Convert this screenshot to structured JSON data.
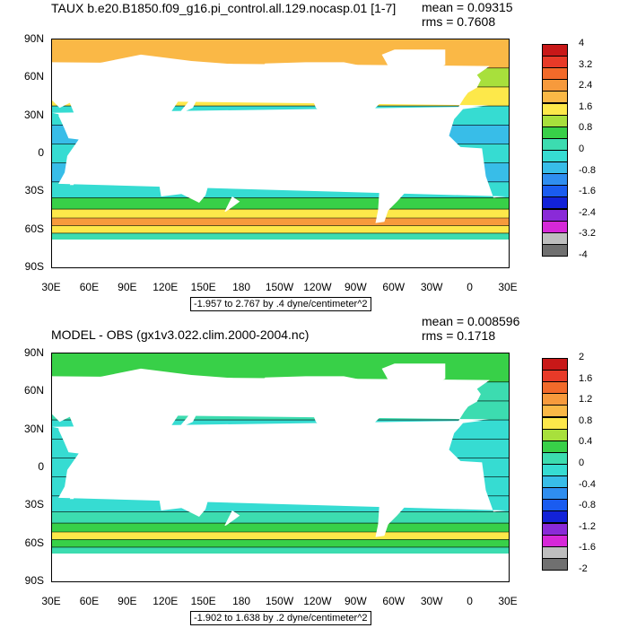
{
  "chart_data": [
    {
      "type": "heatmap",
      "title": "TAUX b.e20.B1850.f09_g16.pi_control.all.129.nocasp.01 [1-7]",
      "stats": {
        "mean": "mean = 0.09315",
        "rms": "rms = 0.7608"
      },
      "range_label": "-1.957 to 2.767 by .4 dyne/centimeter^2",
      "x_ticks": [
        "30E",
        "60E",
        "90E",
        "120E",
        "150E",
        "180",
        "150W",
        "120W",
        "90W",
        "60W",
        "30W",
        "0",
        "30E"
      ],
      "y_ticks": [
        "90N",
        "60N",
        "30N",
        "0",
        "30S",
        "60S",
        "90S"
      ],
      "colorbar_levels": [
        "4",
        "3.2",
        "2.4",
        "1.6",
        "0.8",
        "0",
        "-0.8",
        "-1.6",
        "-2.4",
        "-3.2",
        "-4"
      ],
      "colorbar_colors": [
        "#c81818",
        "#e83a28",
        "#f26a2a",
        "#f79a3c",
        "#fab846",
        "#fde84a",
        "#a8e03c",
        "#38d048",
        "#3cdcb0",
        "#36dcd2",
        "#38bde8",
        "#2f8ef0",
        "#1a5cf0",
        "#1222d8",
        "#8a2ad8",
        "#d628d8",
        "#bebebe",
        "#707070"
      ],
      "zonal_profile": [
        {
          "lat": 75,
          "level": 2
        },
        {
          "lat": 60,
          "level": 1.2
        },
        {
          "lat": 45,
          "level": 1.6
        },
        {
          "lat": 30,
          "level": -0.2
        },
        {
          "lat": 15,
          "level": -0.8
        },
        {
          "lat": 0,
          "level": -0.4
        },
        {
          "lat": -15,
          "level": -0.8
        },
        {
          "lat": -30,
          "level": -0.2
        },
        {
          "lat": -40,
          "level": 0.6
        },
        {
          "lat": -48,
          "level": 1.6
        },
        {
          "lat": -54,
          "level": 2.6
        },
        {
          "lat": -60,
          "level": 1.6
        },
        {
          "lat": -66,
          "level": 0.4
        }
      ]
    },
    {
      "type": "heatmap",
      "title": "MODEL - OBS (gx1v3.022.clim.2000-2004.nc)",
      "stats": {
        "mean": "mean = 0.008596",
        "rms": "rms = 0.1718"
      },
      "range_label": "-1.902 to 1.638 by .2 dyne/centimeter^2",
      "x_ticks": [
        "30E",
        "60E",
        "90E",
        "120E",
        "150E",
        "180",
        "150W",
        "120W",
        "90W",
        "60W",
        "30W",
        "0",
        "30E"
      ],
      "y_ticks": [
        "90N",
        "60N",
        "30N",
        "0",
        "30S",
        "60S",
        "90S"
      ],
      "colorbar_levels": [
        "2",
        "1.6",
        "1.2",
        "0.8",
        "0.4",
        "0",
        "-0.4",
        "-0.8",
        "-1.2",
        "-1.6",
        "-2"
      ],
      "colorbar_colors": [
        "#c81818",
        "#e83a28",
        "#f26a2a",
        "#f79a3c",
        "#fab846",
        "#fde84a",
        "#a8e03c",
        "#38d048",
        "#3cdcb0",
        "#36dcd2",
        "#38bde8",
        "#2f8ef0",
        "#1a5cf0",
        "#1222d8",
        "#8a2ad8",
        "#d628d8",
        "#bebebe",
        "#707070"
      ],
      "zonal_profile": [
        {
          "lat": 75,
          "level": 0.3
        },
        {
          "lat": 60,
          "level": 0.1
        },
        {
          "lat": 45,
          "level": 0.1
        },
        {
          "lat": 30,
          "level": 0.0
        },
        {
          "lat": 15,
          "level": 0.0
        },
        {
          "lat": 0,
          "level": 0.0
        },
        {
          "lat": -15,
          "level": 0.0
        },
        {
          "lat": -30,
          "level": 0.0
        },
        {
          "lat": -40,
          "level": 0.2
        },
        {
          "lat": -48,
          "level": 0.4
        },
        {
          "lat": -54,
          "level": 0.7
        },
        {
          "lat": -60,
          "level": 0.3
        },
        {
          "lat": -66,
          "level": 0.1
        }
      ]
    }
  ]
}
